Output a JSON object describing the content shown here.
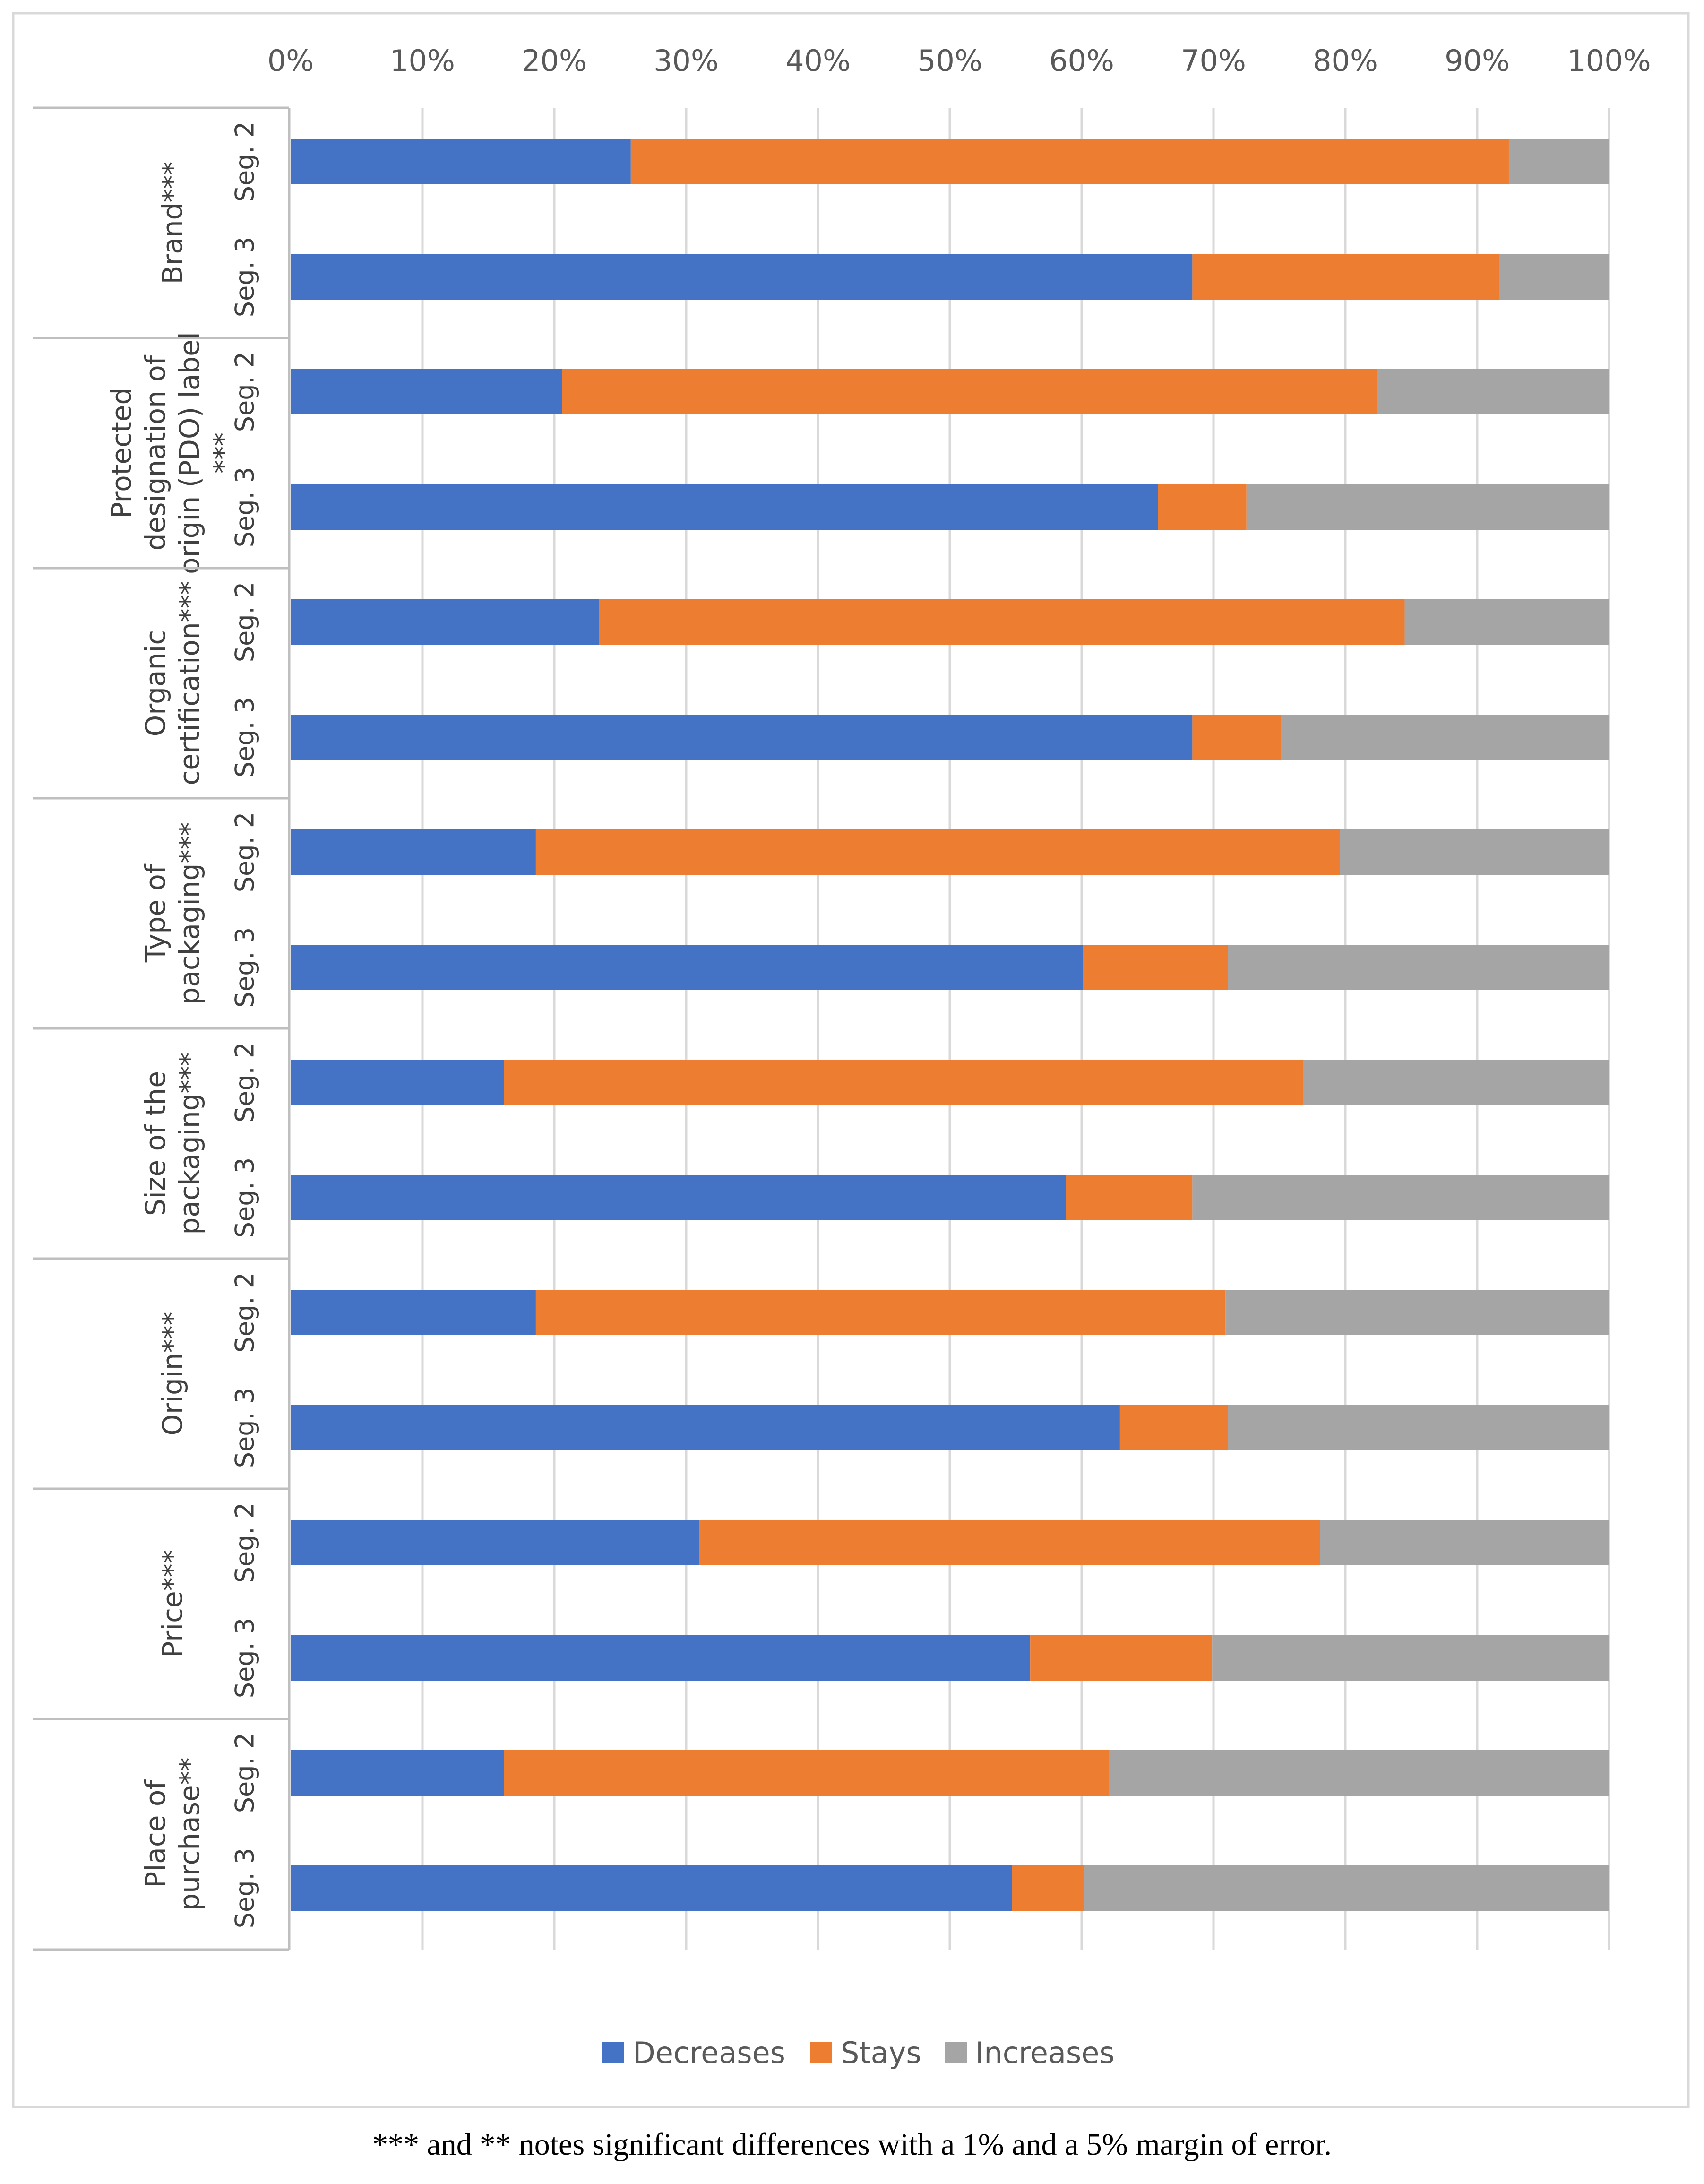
{
  "chart_data": {
    "type": "bar",
    "orientation": "horizontal",
    "stacked": "percent",
    "x_ticks": [
      "0%",
      "10%",
      "20%",
      "30%",
      "40%",
      "50%",
      "60%",
      "70%",
      "80%",
      "90%",
      "100%"
    ],
    "xlim": [
      0,
      100
    ],
    "grid": true,
    "legend_position": "bottom",
    "series": [
      {
        "name": "Decreases",
        "color": "#4472C4"
      },
      {
        "name": "Stays",
        "color": "#ED7D31"
      },
      {
        "name": "Increases",
        "color": "#A5A5A5"
      }
    ],
    "groups": [
      {
        "label": "Brand***",
        "bars": [
          {
            "segment": "Seg. 2",
            "values": [
              25.8,
              66.6,
              7.6
            ]
          },
          {
            "segment": "Seg. 3",
            "values": [
              68.4,
              23.3,
              8.3
            ]
          }
        ]
      },
      {
        "label": "Protected designation of origin (PDO) label ***",
        "lines": [
          "Protected",
          "designation of",
          "origin (PDO) label",
          "***"
        ],
        "bars": [
          {
            "segment": "Seg. 2",
            "values": [
              20.6,
              61.8,
              17.6
            ]
          },
          {
            "segment": "Seg. 3",
            "values": [
              65.8,
              6.7,
              27.5
            ]
          }
        ]
      },
      {
        "label": "Organic certification***",
        "lines": [
          "Organic",
          "certification***"
        ],
        "bars": [
          {
            "segment": "Seg. 2",
            "values": [
              23.4,
              61.1,
              15.5
            ]
          },
          {
            "segment": "Seg. 3",
            "values": [
              68.4,
              6.7,
              24.9
            ]
          }
        ]
      },
      {
        "label": "Type of packaging***",
        "lines": [
          "Type of",
          "packaging***"
        ],
        "bars": [
          {
            "segment": "Seg. 2",
            "values": [
              18.6,
              61.0,
              20.4
            ]
          },
          {
            "segment": "Seg. 3",
            "values": [
              60.1,
              11.0,
              28.9
            ]
          }
        ]
      },
      {
        "label": "Size of the packaging***",
        "lines": [
          "Size of the",
          "packaging***"
        ],
        "bars": [
          {
            "segment": "Seg. 2",
            "values": [
              16.2,
              60.6,
              23.2
            ]
          },
          {
            "segment": "Seg. 3",
            "values": [
              58.8,
              9.6,
              31.6
            ]
          }
        ]
      },
      {
        "label": "Origin***",
        "lines": [
          "Origin***"
        ],
        "bars": [
          {
            "segment": "Seg. 2",
            "values": [
              18.6,
              52.3,
              29.1
            ]
          },
          {
            "segment": "Seg. 3",
            "values": [
              62.9,
              8.2,
              28.9
            ]
          }
        ]
      },
      {
        "label": "Price***",
        "lines": [
          "Price***"
        ],
        "bars": [
          {
            "segment": "Seg. 2",
            "values": [
              31.0,
              47.1,
              21.9
            ]
          },
          {
            "segment": "Seg. 3",
            "values": [
              56.1,
              13.8,
              30.1
            ]
          }
        ]
      },
      {
        "label": "Place of purchase**",
        "lines": [
          "Place of",
          "purchase**"
        ],
        "bars": [
          {
            "segment": "Seg. 2",
            "values": [
              16.2,
              45.9,
              37.9
            ]
          },
          {
            "segment": "Seg. 3",
            "values": [
              54.7,
              5.5,
              39.8
            ]
          }
        ]
      }
    ]
  },
  "footnote": "*** and ** notes significant differences with a 1% and a 5% margin of error."
}
